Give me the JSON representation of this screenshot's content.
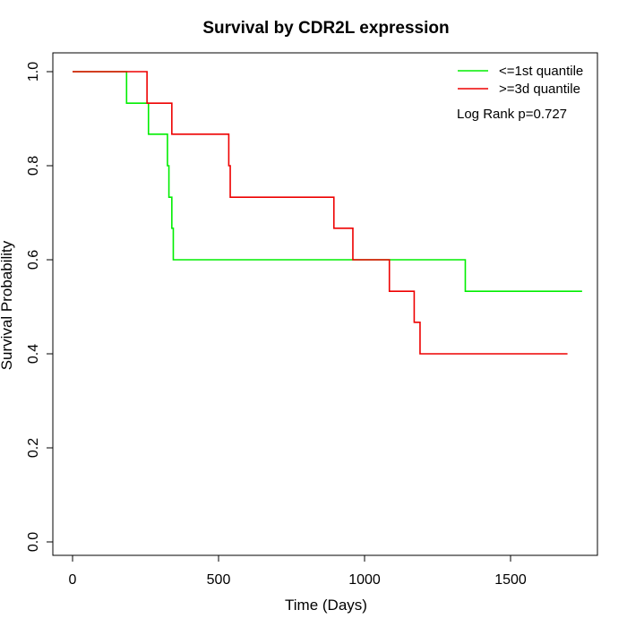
{
  "chart_data": {
    "type": "line",
    "title": "Survival by CDR2L expression",
    "xlabel": "Time (Days)",
    "ylabel": "Survival Probability",
    "xlim": [
      0,
      1750
    ],
    "ylim": [
      0,
      1
    ],
    "x_ticks": [
      0,
      500,
      1000,
      1500
    ],
    "y_ticks": [
      0.0,
      0.2,
      0.4,
      0.6,
      0.8,
      1.0
    ],
    "x_tick_labels": [
      "0",
      "500",
      "1000",
      "1500"
    ],
    "y_tick_labels": [
      "0.0",
      "0.2",
      "0.4",
      "0.6",
      "0.8",
      "1.0"
    ],
    "step": "post",
    "grid": false,
    "legend_position": "top-right",
    "series": [
      {
        "name": "<=1st quantile",
        "color": "#00ee00",
        "x": [
          0,
          185,
          260,
          325,
          330,
          340,
          345,
          1345,
          1745
        ],
        "y": [
          1.0,
          0.933,
          0.867,
          0.8,
          0.733,
          0.667,
          0.6,
          0.533,
          0.533
        ]
      },
      {
        "name": ">=3d quantile",
        "color": "#ee0000",
        "x": [
          0,
          255,
          340,
          535,
          540,
          895,
          960,
          1085,
          1170,
          1190,
          1695
        ],
        "y": [
          1.0,
          0.933,
          0.867,
          0.8,
          0.733,
          0.667,
          0.6,
          0.533,
          0.467,
          0.4,
          0.4
        ]
      }
    ],
    "annotation": "Log Rank p=0.727"
  }
}
